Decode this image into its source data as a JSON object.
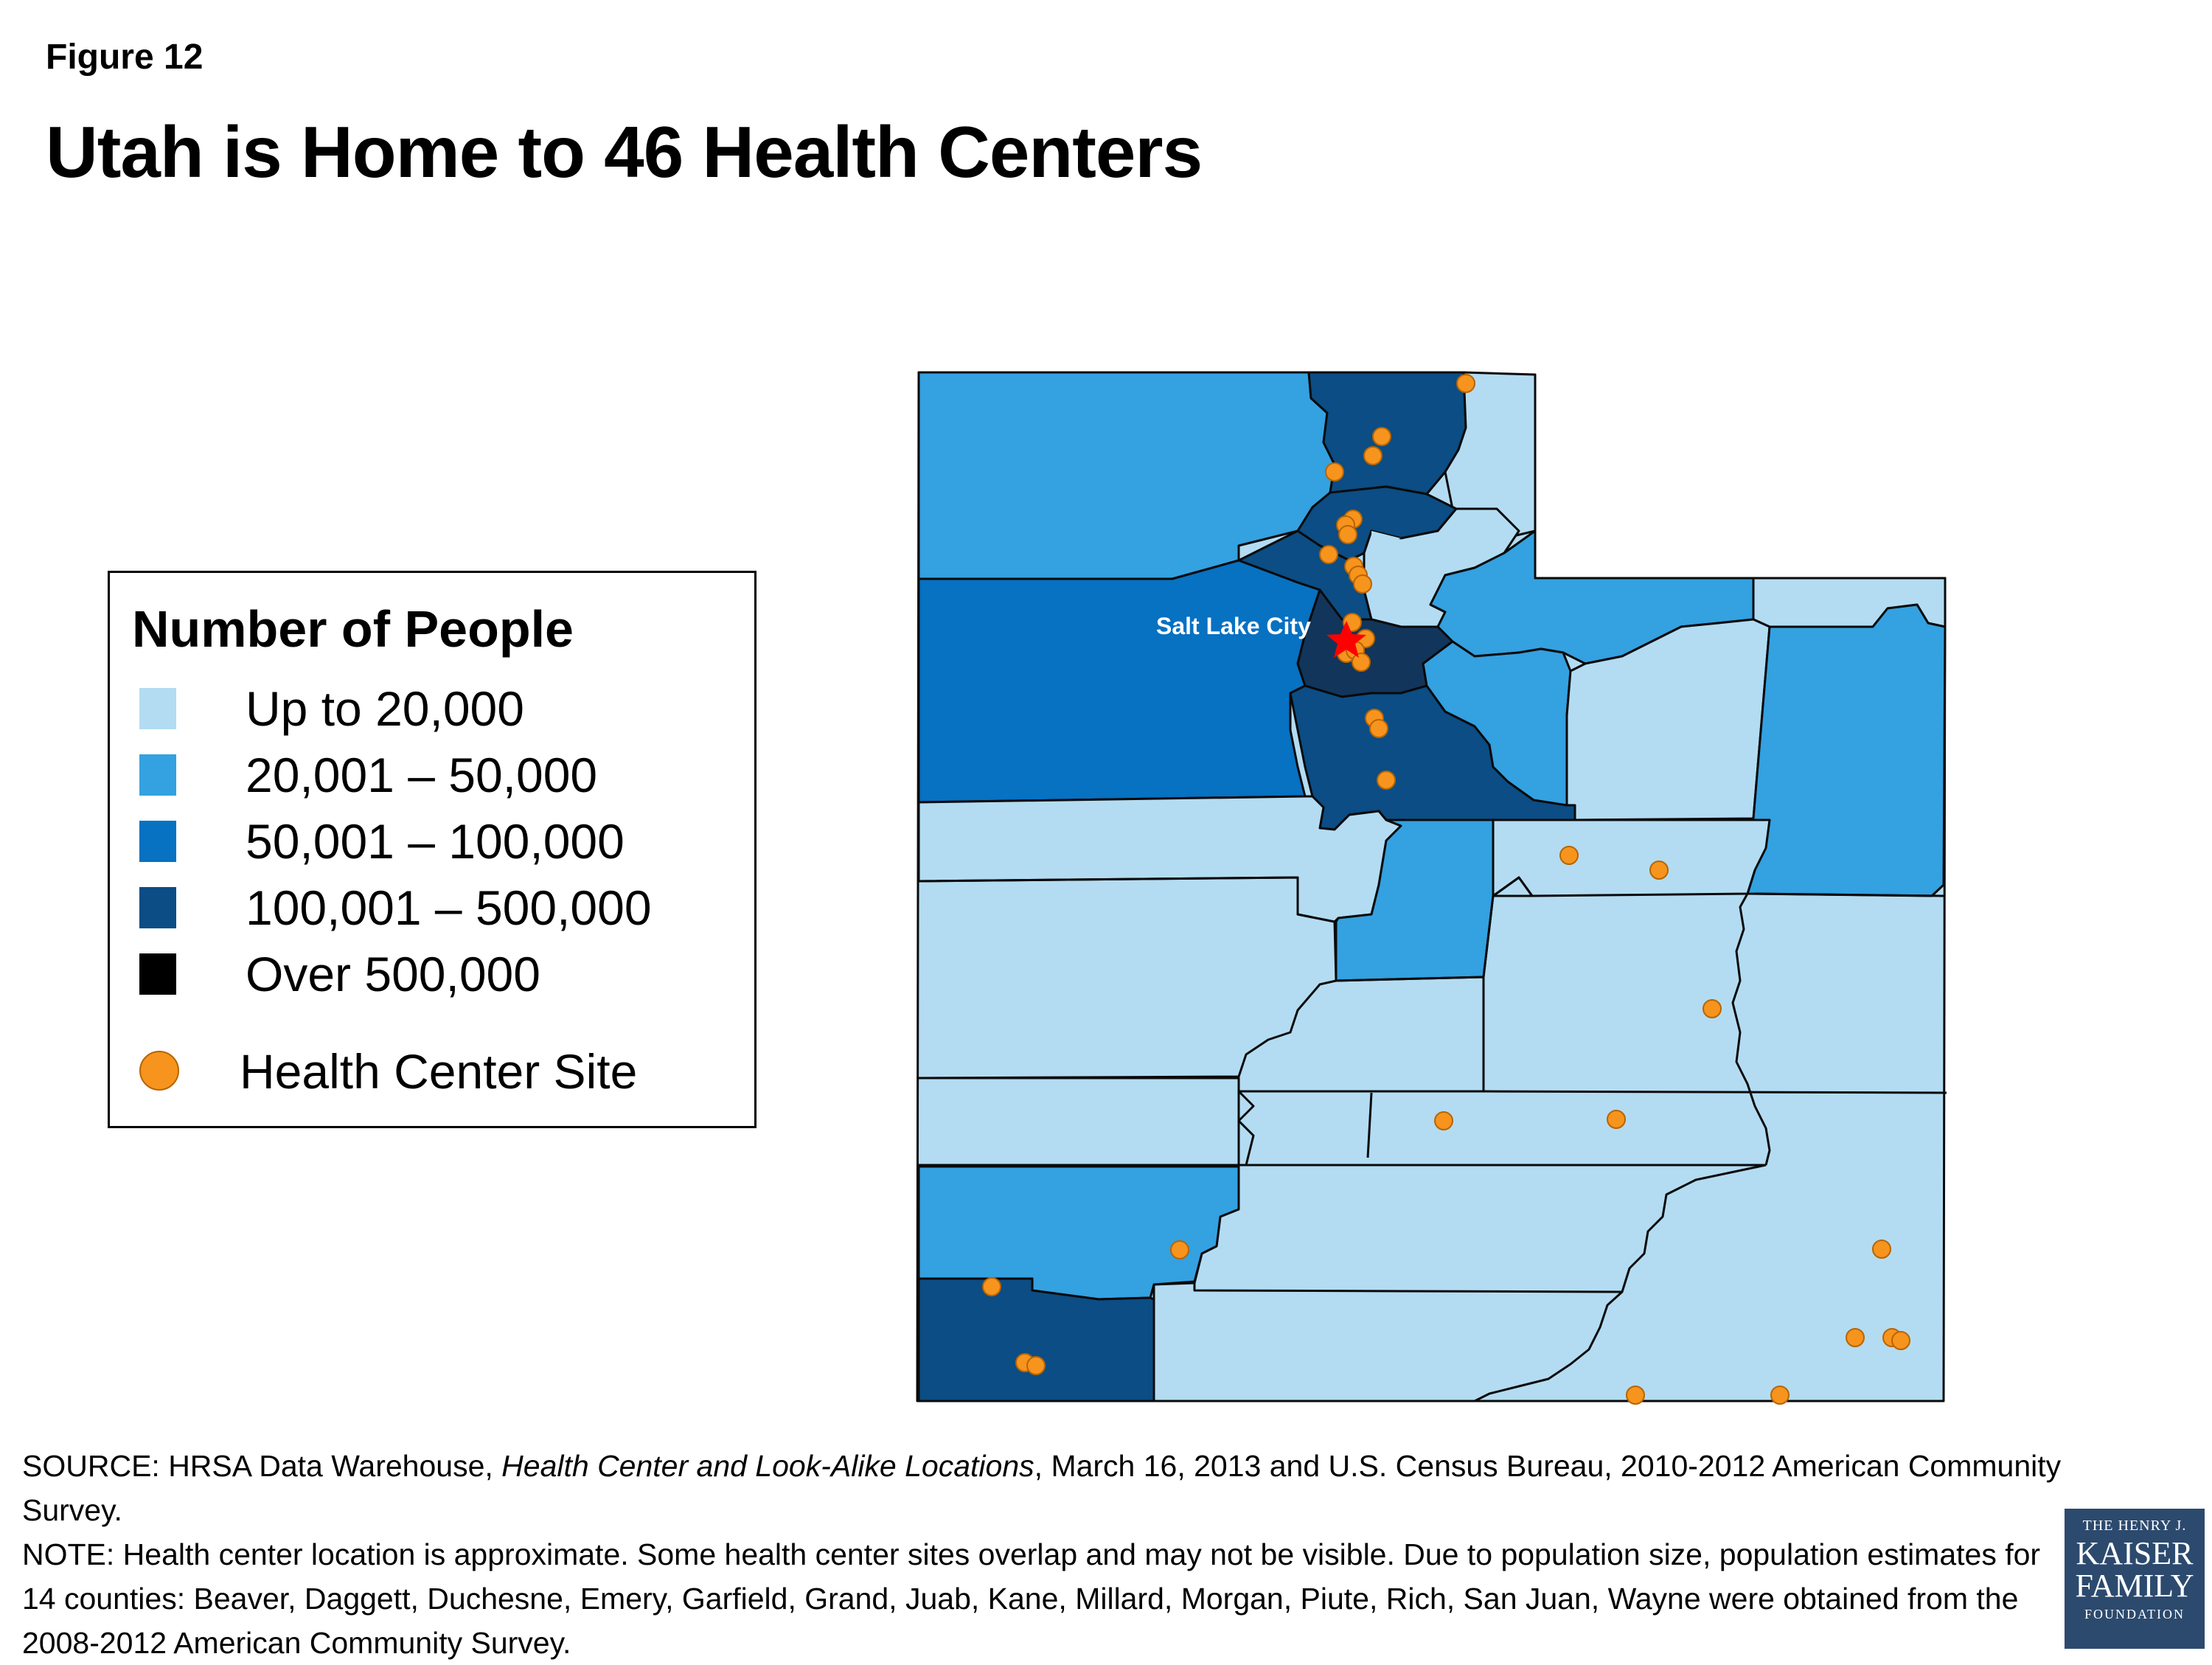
{
  "figure_label": "Figure 12",
  "title": "Utah is Home to 46 Health Centers",
  "legend": {
    "title": "Number of People",
    "items": [
      {
        "label": "Up to 20,000",
        "color": "#b3dcf2"
      },
      {
        "label": "20,001 – 50,000",
        "color": "#34a1e0"
      },
      {
        "label": "50,001 – 100,000",
        "color": "#0771c2"
      },
      {
        "label": "100,001 – 500,000",
        "color": "#0b4d84"
      },
      {
        "label": "Over 500,000",
        "color": "#000000"
      }
    ],
    "site_label": "Health Center Site",
    "site_color": "#f7941d"
  },
  "map": {
    "city_label": "Salt Lake City",
    "city_marker_color": "#ff0000",
    "salt_lake_county_color": "#12355c"
  },
  "source": {
    "line1_prefix": "SOURCE: HRSA Data Warehouse, ",
    "line1_italic": "Health Center and Look-Alike Locations",
    "line1_suffix": ", March 16, 2013 and U.S. Census Bureau, 2010-2012 American Community Survey.",
    "note": "NOTE: Health center location is approximate. Some health center sites overlap and may not be visible. Due to population size, population estimates for 14 counties: Beaver, Daggett, Duchesne, Emery, Garfield, Grand, Juab, Kane, Millard, Morgan, Piute, Rich, San Juan, Wayne were obtained from the 2008-2012 American Community Survey."
  },
  "logo": {
    "line1": "THE HENRY J.",
    "line2": "KAISER",
    "line3": "FAMILY",
    "line4": "FOUNDATION"
  }
}
